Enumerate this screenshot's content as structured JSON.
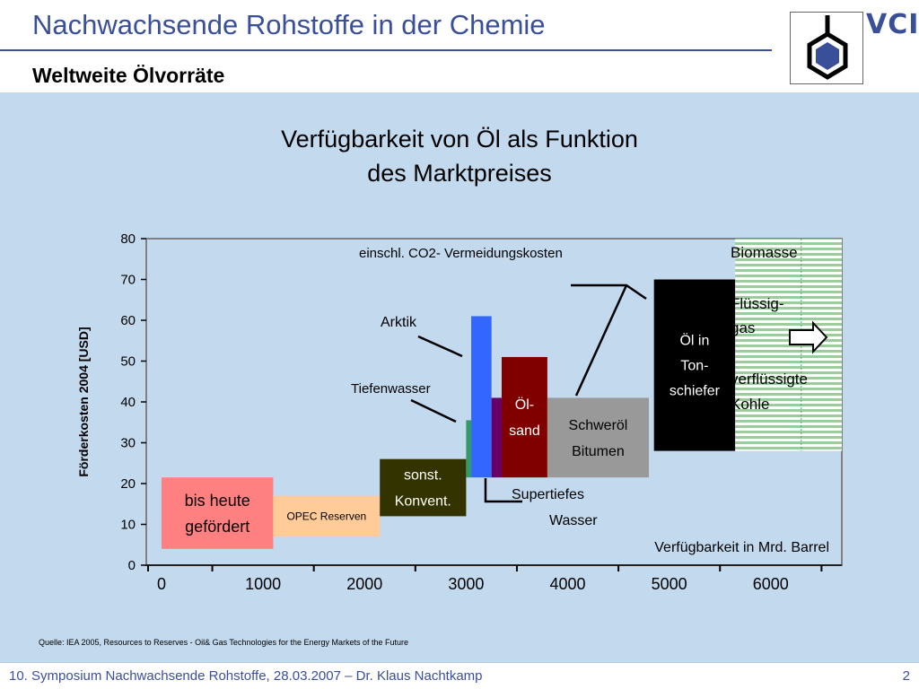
{
  "header": {
    "title": "Nachwachsende Rohstoffe in der Chemie",
    "subtitle": "Weltweite Ölvorräte",
    "logo_text": "VCI"
  },
  "footer": {
    "text": "10. Symposium Nachwachsende Rohstoffe, 28.03.2007 – Dr. Klaus Nachtkamp",
    "page_number": "2"
  },
  "source_note": "Quelle: IEA 2005, Resources to Reserves - Oil& Gas Technologies for the Energy Markets of the Future",
  "colors": {
    "brand_blue": "#3a4f9a",
    "panel_bg": "#c3d9ee"
  },
  "chart_data": {
    "type": "bar",
    "title_line1": "Verfügbarkeit von Öl als Funktion",
    "title_line2": "des Marktpreises",
    "ylabel": "Förderkosten 2004 [USD]",
    "xlabel": "Verfügbarkeit in Mrd. Barrel",
    "ylim": [
      0,
      80
    ],
    "xlim": [
      -150,
      6700
    ],
    "yticks": [
      0,
      10,
      20,
      30,
      40,
      50,
      60,
      70,
      80
    ],
    "xticks": [
      0,
      1000,
      2000,
      3000,
      4000,
      5000,
      6000
    ],
    "annotation_co2": "einschl. CO2- Vermeidungskosten",
    "series": [
      {
        "name": "bis heute gefördert",
        "label_lines": [
          "bis heute",
          "gefördert"
        ],
        "x0": 0,
        "x1": 1100,
        "y0": 4,
        "y1": 21.5,
        "color": "#ff8080",
        "text_color": "#000000"
      },
      {
        "name": "OPEC Reserven",
        "label_lines": [
          "OPEC Reserven"
        ],
        "x0": 1100,
        "x1": 2150,
        "y0": 7,
        "y1": 17,
        "color": "#ffcc99",
        "text_color": "#000000"
      },
      {
        "name": "sonst. Konvent.",
        "label_lines": [
          "sonst.",
          "Konvent."
        ],
        "x0": 2150,
        "x1": 3000,
        "y0": 12,
        "y1": 26,
        "color": "#333300",
        "text_color": "#ffffff"
      },
      {
        "name": "Tiefenwasser",
        "label_lines": [],
        "x0": 3000,
        "x1": 3050,
        "y0": 21.5,
        "y1": 35.5,
        "color": "#339966",
        "text_color": "#000000"
      },
      {
        "name": "Arktik",
        "label_lines": [],
        "x0": 3050,
        "x1": 3250,
        "y0": 21.5,
        "y1": 61,
        "color": "#3366ff",
        "text_color": "#000000"
      },
      {
        "name": "Supertiefes Wasser",
        "label_lines": [],
        "x0": 3250,
        "x1": 3350,
        "y0": 21.5,
        "y1": 41,
        "color": "#660066",
        "text_color": "#000000"
      },
      {
        "name": "Öl-sand",
        "label_lines": [
          "Öl-",
          "sand"
        ],
        "x0": 3350,
        "x1": 3800,
        "y0": 21.5,
        "y1": 51,
        "color": "#800000",
        "text_color": "#ffffff"
      },
      {
        "name": "Schweröl Bitumen",
        "label_lines": [
          "Schweröl",
          "Bitumen"
        ],
        "x0": 3800,
        "x1": 4800,
        "y0": 21.5,
        "y1": 41,
        "color": "#999999",
        "text_color": "#000000"
      },
      {
        "name": "Öl in Tonschiefer",
        "label_lines": [
          "Öl in",
          "Ton-",
          "schiefer"
        ],
        "x0": 4850,
        "x1": 5650,
        "y0": 28,
        "y1": 70,
        "color": "#000000",
        "text_color": "#ffffff"
      },
      {
        "name": "Biomasse / Flüssiggas / verflüssigte Kohle",
        "label_lines": [],
        "x0": 5650,
        "x1": 6700,
        "y0": 28,
        "y1": 80,
        "color": "#9ccc9c",
        "text_color": "#000000"
      }
    ],
    "callouts": {
      "arktik": "Arktik",
      "tiefenwasser": "Tiefenwasser",
      "supertiefes_line1": "Supertiefes",
      "supertiefes_line2": "Wasser",
      "biomasse": "Biomasse",
      "fluessig_line1": "Flüssig-",
      "fluessig_line2": "gas",
      "kohle_line1": "verflüssigte",
      "kohle_line2": "Kohle"
    }
  }
}
